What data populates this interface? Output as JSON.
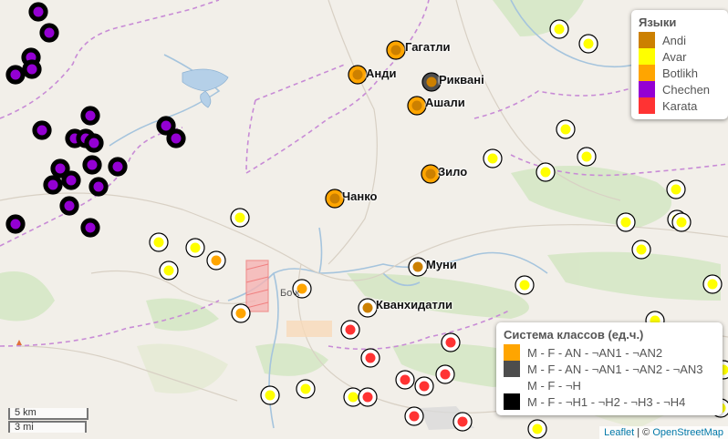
{
  "colors": {
    "andi": "#cc8000",
    "avar": "#ffff00",
    "botlikh": "#ffa500",
    "chechen": "#9400d3",
    "karata": "#ff3333",
    "gray": "#4d4d4d",
    "white": "#ffffff",
    "black": "#000000"
  },
  "legend_languages": {
    "title": "Языки",
    "items": [
      {
        "label": "Andi",
        "color": "#cc8000"
      },
      {
        "label": "Avar",
        "color": "#ffff00"
      },
      {
        "label": "Botlikh",
        "color": "#ffa500"
      },
      {
        "label": "Chechen",
        "color": "#9400d3"
      },
      {
        "label": "Karata",
        "color": "#ff3333"
      }
    ]
  },
  "legend_classes": {
    "title": "Система классов (ед.ч.)",
    "items": [
      {
        "label": "M - F - AN - ¬AN1 - ¬AN2",
        "color": "#ffa500"
      },
      {
        "label": "M - F - AN - ¬AN1 - ¬AN2 - ¬AN3",
        "color": "#4d4d4d"
      },
      {
        "label": "M - F - ¬H",
        "color": "#ffffff"
      },
      {
        "label": "M - F - ¬H1 - ¬H2 - ¬H3 - ¬H4",
        "color": "#000000"
      }
    ]
  },
  "place_labels": [
    {
      "id": "gagatli",
      "text": "Гагатли"
    },
    {
      "id": "andi",
      "text": "Анди"
    },
    {
      "id": "rikvani",
      "text": "Рикванi"
    },
    {
      "id": "ashali",
      "text": "Ашали"
    },
    {
      "id": "zilo",
      "text": "Зило"
    },
    {
      "id": "chanko",
      "text": "Чанко"
    },
    {
      "id": "muni",
      "text": "Муни"
    },
    {
      "id": "kvankhidatli",
      "text": "Кванхидатли"
    }
  ],
  "map_text": {
    "botlikh_town": "Бо    к"
  },
  "scale": {
    "km": "5 km",
    "mi": "3 mi"
  },
  "attribution": {
    "leaflet": "Leaflet",
    "separator": " | © ",
    "osm": "OpenStreetMap"
  }
}
